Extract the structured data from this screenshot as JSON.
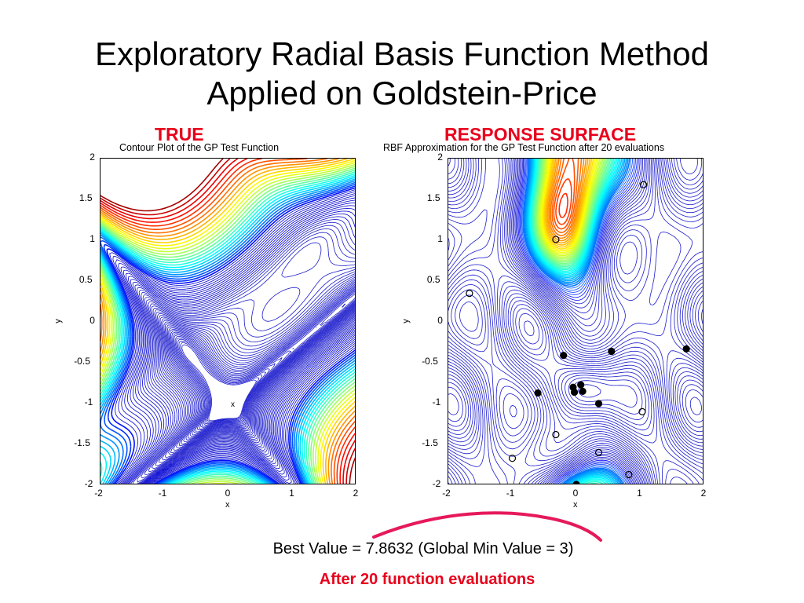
{
  "slide": {
    "title_line1": "Exploratory Radial Basis Function Method",
    "title_line2": "Applied on Goldstein-Price",
    "left_label": "TRUE",
    "right_label": "RESPONSE SURFACE",
    "best_value_text": "Best Value = 7.8632 (Global Min Value = 3)",
    "footnote_text": "After 20 function evaluations",
    "label_color": "#e8001c",
    "arc_color": "#e6195a"
  },
  "chart_data": [
    {
      "type": "contour",
      "title": "Contour Plot of the GP Test Function",
      "xlabel": "x",
      "ylabel": "y",
      "xlim": [
        -2,
        2
      ],
      "ylim": [
        -2,
        2
      ],
      "x_ticks": [
        "-2",
        "-1",
        "0",
        "1",
        "2"
      ],
      "y_ticks": [
        "2",
        "1.5",
        "1",
        "0.5",
        "0",
        "-0.5",
        "-1",
        "-1.5",
        "-2"
      ],
      "markers": [
        {
          "x": 0,
          "y": -1,
          "symbol": "x",
          "label": "x"
        }
      ]
    },
    {
      "type": "contour",
      "title": "RBF Approximation for the GP Test Function after 20 evaluations",
      "xlabel": "x",
      "ylabel": "y",
      "xlim": [
        -2,
        2
      ],
      "ylim": [
        -2,
        2
      ],
      "x_ticks": [
        "-2",
        "-1",
        "0",
        "1",
        "2"
      ],
      "y_ticks": [
        "2",
        "1.5",
        "1",
        "0.5",
        "0",
        "-0.5",
        "-1",
        "-1.5",
        "-2"
      ],
      "evaluation_points": [
        {
          "x": 1.05,
          "y": 1.68,
          "filled": false
        },
        {
          "x": -0.32,
          "y": 1.01,
          "filled": false
        },
        {
          "x": -1.67,
          "y": 0.35,
          "filled": false
        },
        {
          "x": -0.2,
          "y": -0.41,
          "filled": true
        },
        {
          "x": 0.55,
          "y": -0.36,
          "filled": true
        },
        {
          "x": 1.72,
          "y": -0.33,
          "filled": true
        },
        {
          "x": -0.6,
          "y": -0.87,
          "filled": true
        },
        {
          "x": -0.05,
          "y": -0.8,
          "filled": true
        },
        {
          "x": 0.07,
          "y": -0.77,
          "filled": true
        },
        {
          "x": -0.03,
          "y": -0.86,
          "filled": true
        },
        {
          "x": 0.1,
          "y": -0.85,
          "filled": true
        },
        {
          "x": 0.35,
          "y": -1.0,
          "filled": true
        },
        {
          "x": 1.03,
          "y": -1.1,
          "filled": false
        },
        {
          "x": -0.32,
          "y": -1.38,
          "filled": false
        },
        {
          "x": 0.35,
          "y": -1.6,
          "filled": false
        },
        {
          "x": -1.0,
          "y": -1.67,
          "filled": false
        },
        {
          "x": 0.82,
          "y": -1.87,
          "filled": false
        },
        {
          "x": 0.0,
          "y": -1.99,
          "filled": true
        }
      ]
    }
  ]
}
